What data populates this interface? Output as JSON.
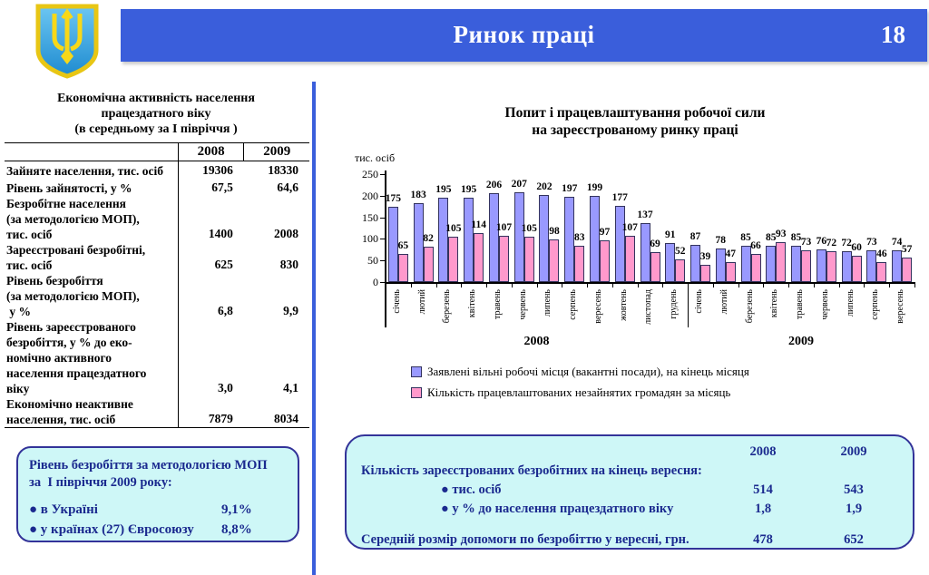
{
  "header": {
    "title": "Ринок праці",
    "page_number": "18"
  },
  "left_table": {
    "title": "Економічна активність населення\nпрацездатного віку\n(в середньому за I півріччя )",
    "col_headers": [
      "2008",
      "2009"
    ],
    "rows": [
      {
        "label": "Зайняте населення, тис. осіб",
        "v2008": "19306",
        "v2009": "18330"
      },
      {
        "label": "Рівень зайнятості, у %",
        "v2008": "67,5",
        "v2009": "64,6"
      },
      {
        "label": "Безробітне населення\n(за методологією МОП),\nтис. осіб",
        "v2008": "1400",
        "v2009": "2008"
      },
      {
        "label": "Зареєстровані безробітні,\nтис. осіб",
        "v2008": "625",
        "v2009": "830"
      },
      {
        "label": "Рівень безробіття\n(за методологією МОП),\n у %",
        "v2008": "6,8",
        "v2009": "9,9"
      },
      {
        "label": "Рівень зареєстрованого\nбезробіття, у % до еко-\nномічно активного\nнаселення працездатного\nвіку",
        "v2008": "3,0",
        "v2009": "4,1"
      },
      {
        "label": "Економічно неактивне\nнаселення, тис. осіб",
        "v2008": "7879",
        "v2009": "8034"
      }
    ]
  },
  "left_box": {
    "heading": "Рівень безробіття за методологією МОП\nза  I півріччя 2009 року:",
    "items": [
      {
        "label": "● в Україні",
        "value": "9,1%"
      },
      {
        "label": "● у країнах (27) Євросоюзу",
        "value": "8,8%"
      }
    ]
  },
  "chart_data": {
    "type": "bar",
    "title": "Попит і працевлаштування робочої сили\nна зареєстрованому ринку праці",
    "y_axis_label": "тис. осіб",
    "ylim": [
      0,
      250
    ],
    "yticks": [
      0,
      50,
      100,
      150,
      200,
      250
    ],
    "grid": false,
    "legend_position": "bottom",
    "categories": [
      "січень",
      "лютий",
      "березень",
      "квітень",
      "травень",
      "червень",
      "липень",
      "серпень",
      "вересень",
      "жовтень",
      "листопад",
      "грудень",
      "січень",
      "лютий",
      "березень",
      "квітень",
      "травень",
      "червень",
      "липень",
      "серпень",
      "вересень"
    ],
    "year_groups": [
      {
        "label": "2008",
        "count": 12
      },
      {
        "label": "2009",
        "count": 9
      }
    ],
    "series": [
      {
        "name": "Заявлені вільні робочі місця (вакантні посади), на кінець місяця",
        "color": "#9999FF",
        "values": [
          175,
          183,
          195,
          195,
          206,
          207,
          202,
          197,
          199,
          177,
          137,
          91,
          87,
          78,
          85,
          85,
          85,
          76,
          72,
          73,
          74
        ]
      },
      {
        "name": "Кількість працевлаштованих незайнятих громадян за місяць",
        "color": "#FF99CC",
        "values": [
          65,
          82,
          105,
          114,
          107,
          105,
          98,
          83,
          97,
          107,
          69,
          52,
          39,
          47,
          66,
          93,
          73,
          72,
          60,
          46,
          57
        ]
      }
    ]
  },
  "right_box": {
    "col_headers": [
      "2008",
      "2009"
    ],
    "rows": [
      {
        "label": "Кількість зареєстрованих безробітних на кінець вересня:",
        "v2008": "",
        "v2009": "",
        "indent": false,
        "spacer": false
      },
      {
        "label": "● тис. осіб",
        "v2008": "514",
        "v2009": "543",
        "indent": true,
        "spacer": false
      },
      {
        "label": "● у % до населення працездатного віку",
        "v2008": "1,8",
        "v2009": "1,9",
        "indent": true,
        "spacer": false
      },
      {
        "label": "",
        "v2008": "",
        "v2009": "",
        "indent": false,
        "spacer": true
      },
      {
        "label": "Середній розмір допомоги по безробіттю у вересні, грн.",
        "v2008": "478",
        "v2009": "652",
        "indent": false,
        "spacer": false
      }
    ]
  }
}
